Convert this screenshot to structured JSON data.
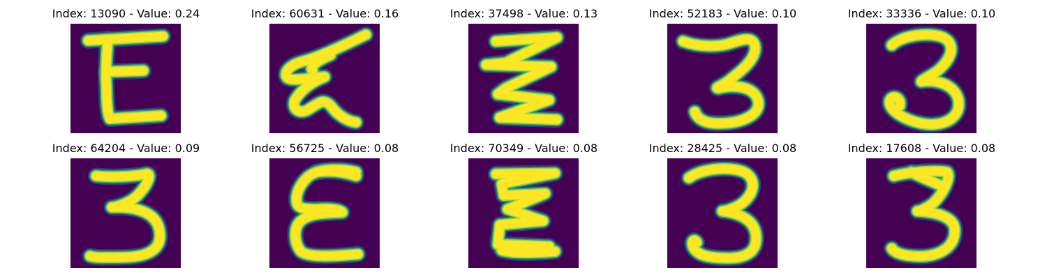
{
  "colors": {
    "background": "#440154",
    "stroke_core": "#fde725",
    "stroke_mid": "#a0da39",
    "stroke_edge": "#1fa187",
    "stroke_halo": "#31688e"
  },
  "panels": [
    {
      "title": "Index: 13090 - Value: 0.24",
      "glyph": "Ɛ-bold-straight"
    },
    {
      "title": "Index: 60631 - Value: 0.16",
      "glyph": "Ɛ-slanted"
    },
    {
      "title": "Index: 37498 - Value: 0.13",
      "glyph": "zigzag"
    },
    {
      "title": "Index: 52183 - Value: 0.10",
      "glyph": "3-thin"
    },
    {
      "title": "Index: 33336 - Value: 0.10",
      "glyph": "3-curly"
    },
    {
      "title": "Index: 64204 - Value: 0.09",
      "glyph": "3-wide"
    },
    {
      "title": "Index: 56725 - Value: 0.08",
      "glyph": "Ɛ-round"
    },
    {
      "title": "Index: 70349 - Value: 0.08",
      "glyph": "Ɛ-zigzag"
    },
    {
      "title": "Index: 28425 - Value: 0.08",
      "glyph": "3-regular"
    },
    {
      "title": "Index: 17608 - Value: 0.08",
      "glyph": "3-bold"
    }
  ]
}
